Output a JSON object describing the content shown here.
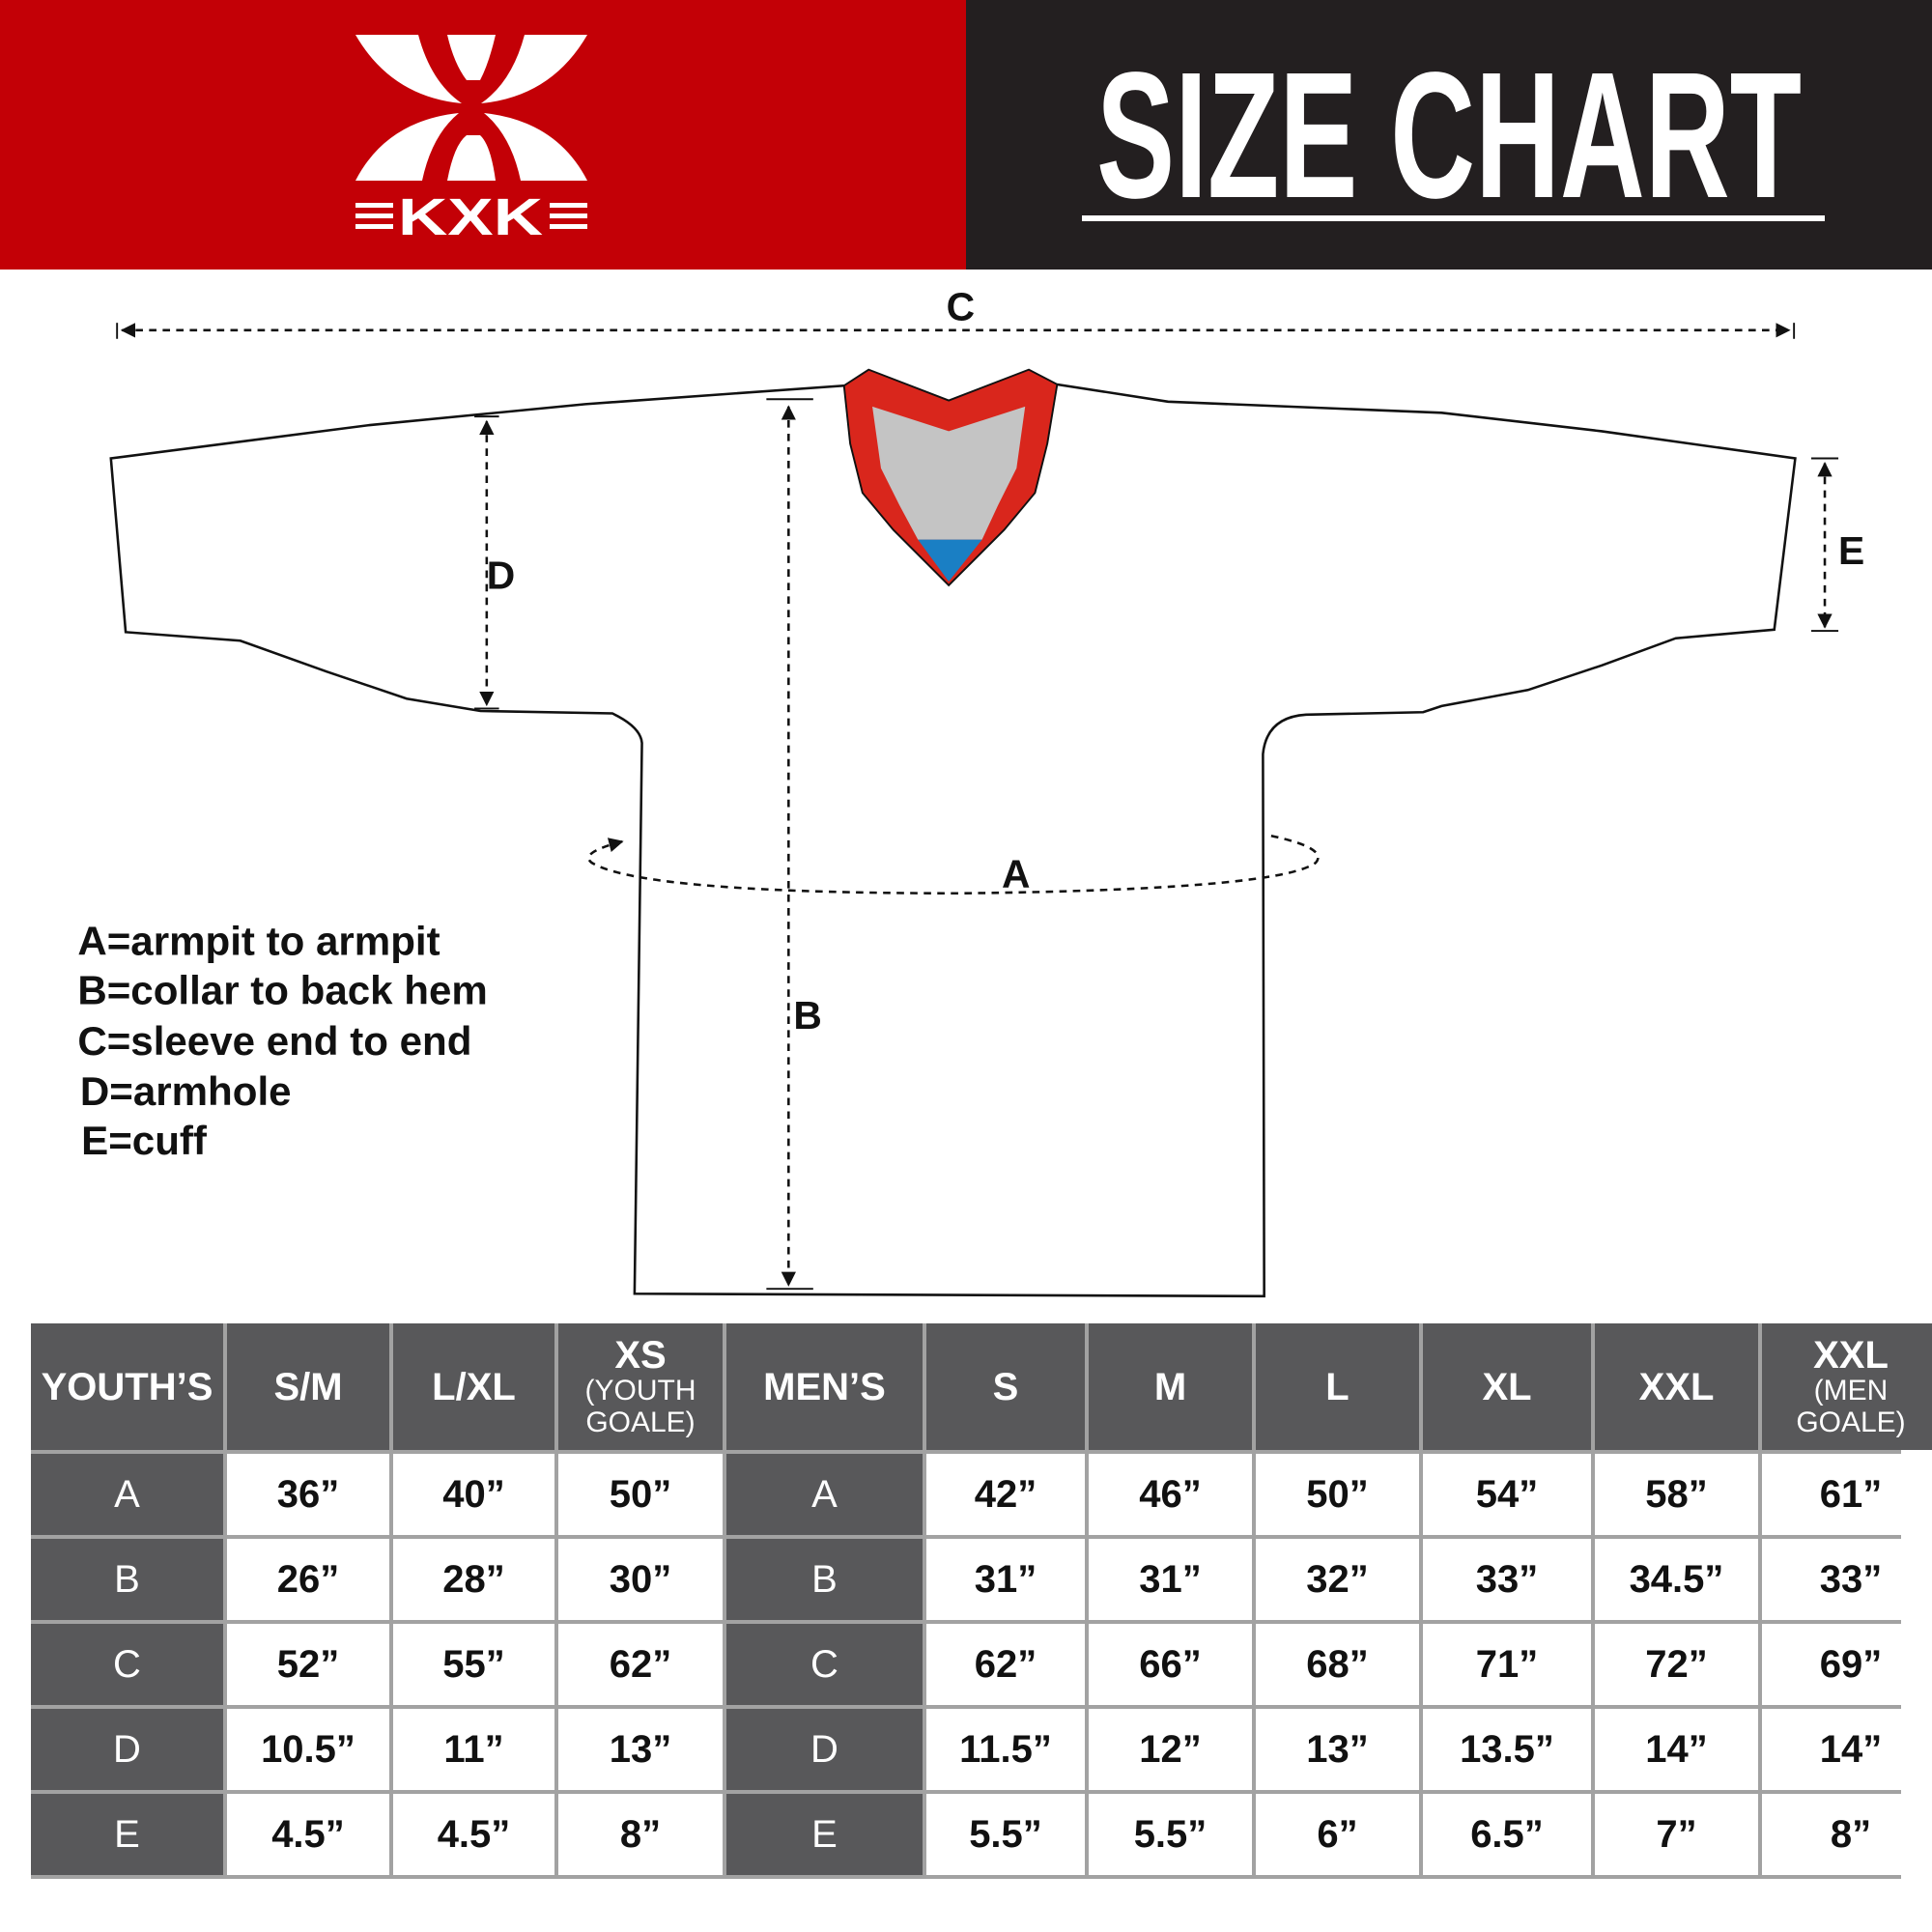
{
  "brand": {
    "name": "KXK",
    "red": "#c30006",
    "dark": "#231f20"
  },
  "title": "SIZE CHART",
  "diagram": {
    "labels": {
      "a": "A",
      "b": "B",
      "c": "C",
      "d": "D",
      "e": "E"
    },
    "legend": [
      "A=armpit to armpit",
      "B=collar to back hem",
      "C=sleeve end to end",
      "D=armhole",
      "E=cuff"
    ],
    "collar_colors": {
      "trim": "#d9261c",
      "inner": "#c4c4c4",
      "tag": "#1a7fc4"
    }
  },
  "table": {
    "headers": [
      {
        "main": "YOUTH’S"
      },
      {
        "main": "S/M"
      },
      {
        "main": "L/XL"
      },
      {
        "main": "XS",
        "sub": "(YOUTH GOALE)"
      },
      {
        "main": "MEN’S"
      },
      {
        "main": "S"
      },
      {
        "main": "M"
      },
      {
        "main": "L"
      },
      {
        "main": "XL"
      },
      {
        "main": "XXL"
      },
      {
        "main": "XXL",
        "sub": "(MEN GOALE)"
      }
    ],
    "rows": [
      {
        "youth_label": "A",
        "youth": [
          "36”",
          "40”",
          "50”"
        ],
        "men_label": "A",
        "men": [
          "42”",
          "46”",
          "50”",
          "54”",
          "58”",
          "61”"
        ]
      },
      {
        "youth_label": "B",
        "youth": [
          "26”",
          "28”",
          "30”"
        ],
        "men_label": "B",
        "men": [
          "31”",
          "31”",
          "32”",
          "33”",
          "34.5”",
          "33”"
        ]
      },
      {
        "youth_label": "C",
        "youth": [
          "52”",
          "55”",
          "62”"
        ],
        "men_label": "C",
        "men": [
          "62”",
          "66”",
          "68”",
          "71”",
          "72”",
          "69”"
        ]
      },
      {
        "youth_label": "D",
        "youth": [
          "10.5”",
          "11”",
          "13”"
        ],
        "men_label": "D",
        "men": [
          "11.5”",
          "12”",
          "13”",
          "13.5”",
          "14”",
          "14”"
        ]
      },
      {
        "youth_label": "E",
        "youth": [
          "4.5”",
          "4.5”",
          "8”"
        ],
        "men_label": "E",
        "men": [
          "5.5”",
          "5.5”",
          "6”",
          "6.5”",
          "7”",
          "8”"
        ]
      }
    ]
  }
}
